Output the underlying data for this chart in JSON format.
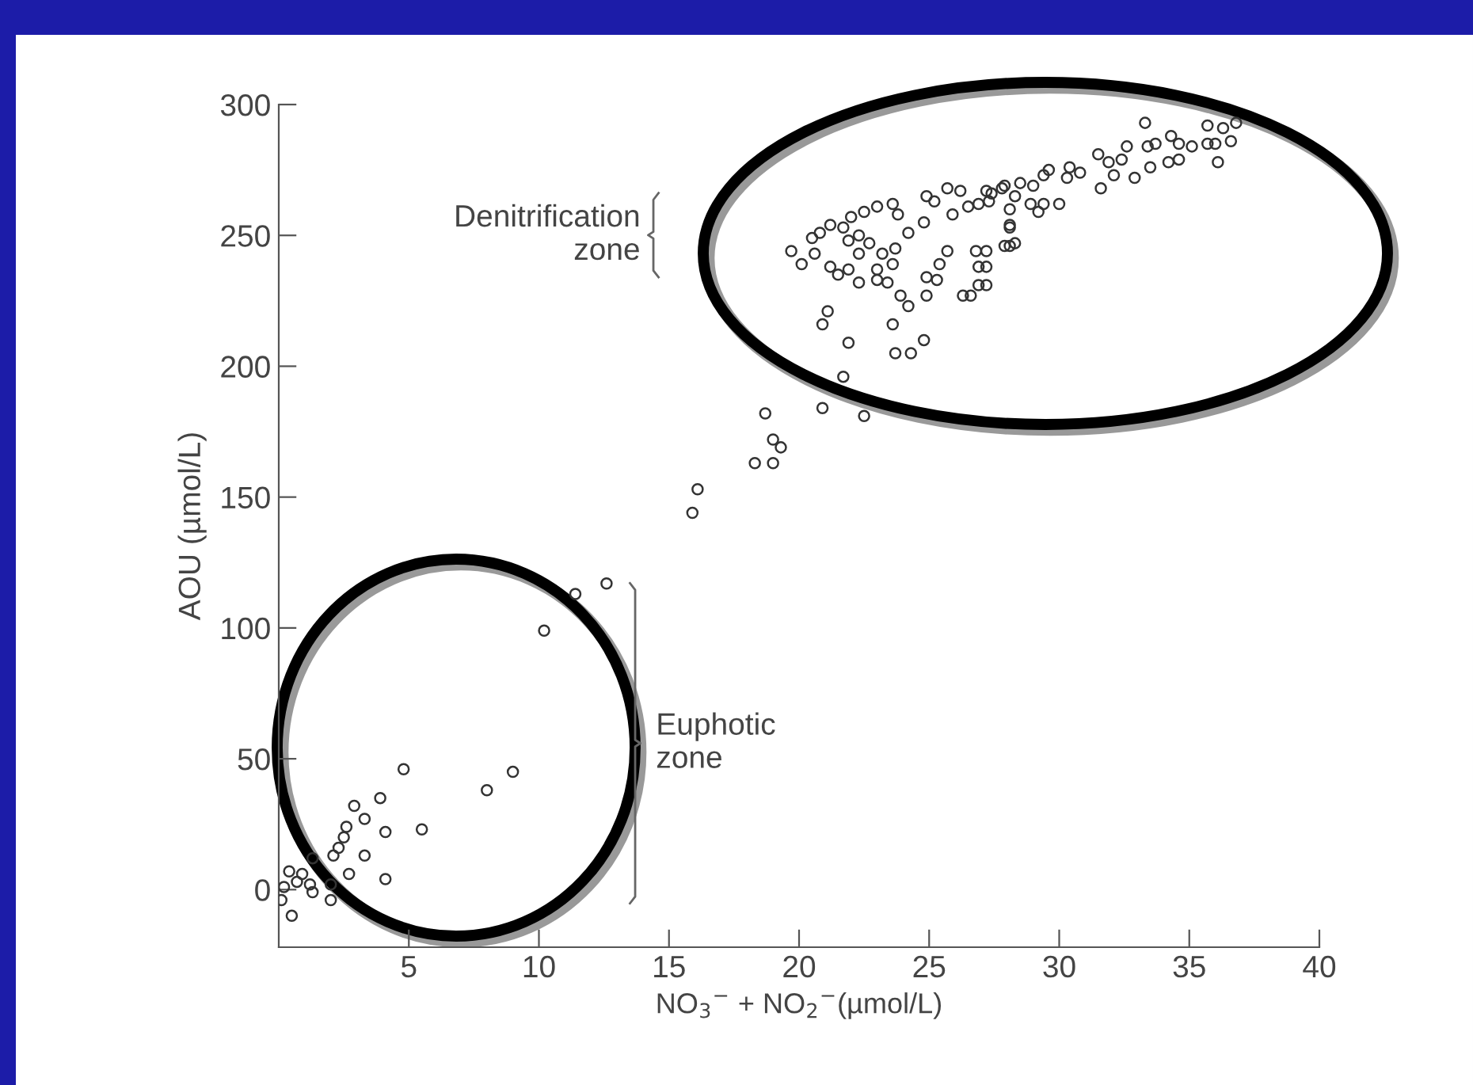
{
  "chart_data": {
    "type": "scatter",
    "xlabel": "NO$_{3}$$^{−}$ + NO$_{2}$$^{−}$(µmol/L)",
    "ylabel": "AOU (µmol/L)",
    "xlim": [
      0,
      40
    ],
    "ylim": [
      -22,
      300
    ],
    "xticks": [
      5,
      10,
      15,
      20,
      25,
      30,
      35,
      40
    ],
    "yticks": [
      0,
      50,
      100,
      150,
      200,
      250,
      300
    ],
    "grid": false,
    "marker": "circle",
    "annotations": [
      "Denitrification\nzone",
      "Euphotic\nzone"
    ],
    "series": [
      {
        "color": "#333333",
        "x": [
          12.6,
          11.4,
          10.2,
          4.8,
          9.0,
          8.0,
          3.9,
          2.9,
          3.3,
          2.6,
          5.5,
          4.1,
          2.5,
          2.3,
          2.1,
          3.3,
          1.3,
          2.7,
          2.0,
          4.1,
          2.0,
          0.4,
          0.9,
          0.7,
          1.2,
          1.3,
          0.2,
          0.1,
          0.5,
          15.9,
          16.1,
          18.7,
          19.0,
          18.3,
          19.0,
          19.3,
          20.9,
          22.5,
          21.7,
          21.9,
          21.1,
          20.9,
          23.7,
          24.3,
          24.8,
          19.7,
          20.1,
          20.6,
          20.5,
          20.8,
          21.2,
          21.7,
          22.0,
          22.5,
          23.0,
          23.6,
          23.8,
          22.3,
          21.9,
          22.3,
          21.2,
          21.5,
          21.9,
          22.3,
          22.7,
          23.2,
          23.0,
          23.0,
          23.4,
          23.7,
          23.6,
          23.9,
          24.2,
          23.6,
          24.2,
          24.8,
          24.9,
          25.2,
          25.7,
          26.2,
          26.5,
          25.9,
          26.9,
          27.4,
          27.8,
          25.7,
          25.4,
          24.9,
          25.3,
          24.9,
          26.8,
          26.9,
          26.9,
          26.3,
          26.6,
          28.1,
          28.1,
          33.3,
          35.7,
          36.3,
          36.8,
          36.6,
          36.0,
          35.7,
          35.1,
          34.3,
          34.6,
          33.7,
          33.4,
          36.1,
          34.6,
          34.2,
          33.5,
          32.9,
          32.6,
          32.1,
          32.4,
          31.9,
          31.5,
          31.6,
          30.8,
          30.4,
          30.3,
          29.6,
          29.4,
          29.0,
          28.5,
          27.9,
          27.2,
          27.3,
          28.3,
          28.9,
          29.4,
          30.0,
          29.2,
          28.1,
          28.1,
          27.9,
          28.3,
          27.2,
          27.2,
          27.2
        ],
        "values": [
          117,
          113,
          99,
          46,
          45,
          38,
          35,
          32,
          27,
          24,
          23,
          22,
          20,
          16,
          13,
          13,
          12,
          6,
          2,
          4,
          -4,
          7,
          6,
          3,
          2,
          -1,
          1,
          -4,
          -10,
          144,
          153,
          182,
          172,
          163,
          163,
          169,
          184,
          181,
          196,
          209,
          221,
          216,
          205,
          205,
          210,
          244,
          239,
          243,
          249,
          251,
          254,
          253,
          257,
          259,
          261,
          262,
          258,
          250,
          248,
          243,
          238,
          235,
          237,
          232,
          247,
          243,
          237,
          233,
          232,
          245,
          239,
          227,
          223,
          216,
          251,
          255,
          265,
          263,
          268,
          267,
          261,
          258,
          262,
          266,
          268,
          244,
          239,
          234,
          233,
          227,
          244,
          238,
          231,
          227,
          227,
          246,
          253,
          293,
          292,
          291,
          293,
          286,
          285,
          285,
          284,
          288,
          285,
          285,
          284,
          278,
          279,
          278,
          276,
          272,
          284,
          273,
          279,
          278,
          281,
          268,
          274,
          276,
          272,
          275,
          273,
          269,
          270,
          269,
          267,
          263,
          265,
          262,
          262,
          262,
          259,
          260,
          254,
          246,
          247,
          244,
          238,
          231
        ]
      }
    ]
  }
}
